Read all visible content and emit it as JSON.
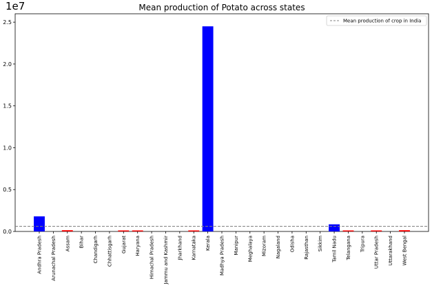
{
  "chart_data": {
    "type": "bar",
    "title": "Mean production of Potato across states",
    "offset_text": "1e7",
    "xlabel": "",
    "ylabel": "",
    "ylim": [
      0,
      26000000
    ],
    "y_ticks": [
      0,
      5000000,
      10000000,
      15000000,
      20000000,
      25000000
    ],
    "y_tick_labels": [
      "0.0",
      "0.5",
      "1.0",
      "1.5",
      "2.0",
      "2.5"
    ],
    "categories": [
      "Andhra Pradesh",
      "Arunachal Pradesh",
      "Assam",
      "Bihar",
      "Chandigarh",
      "Chhattisgarh",
      "Gujarat",
      "Haryana",
      "Himachal Pradesh",
      "Jammu and Kashmir",
      "Jharkhand",
      "Karnataka",
      "Kerala",
      "Madhya Pradesh",
      "Manipur",
      "Meghalaya",
      "Mizoram",
      "Nagaland",
      "Odisha",
      "Rajasthan",
      "Sikkim",
      "Tamil Nadu",
      "Telangana",
      "Tripura",
      "Uttar Pradesh",
      "Uttarakhand",
      "West Bengal"
    ],
    "values": [
      1800000,
      0,
      150000,
      0,
      0,
      0,
      50000,
      120000,
      0,
      0,
      0,
      60000,
      24500000,
      0,
      0,
      0,
      0,
      0,
      0,
      0,
      0,
      850000,
      30000,
      0,
      100000,
      0,
      150000
    ],
    "mean_line": 620000,
    "legend": {
      "label": "Mean production of crop in India",
      "position": "top-right"
    },
    "colors": {
      "above_mean": "#0000ff",
      "below_mean": "#ff0000",
      "mean_line": "#808080"
    },
    "grid": false
  }
}
